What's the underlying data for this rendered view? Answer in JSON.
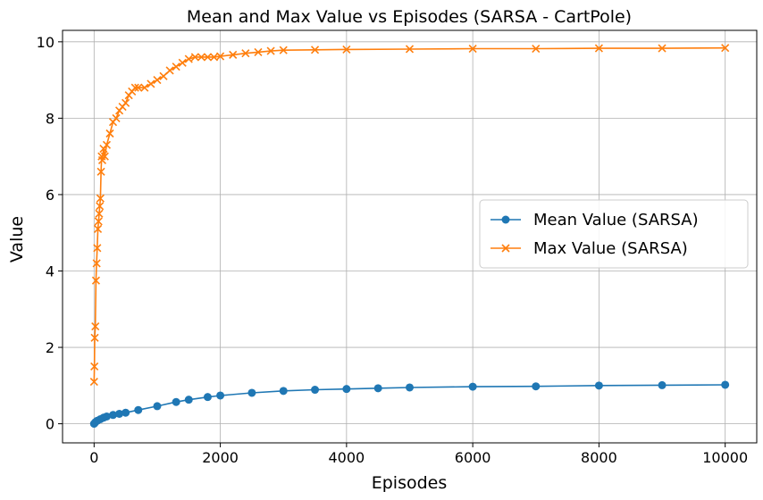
{
  "chart_data": {
    "type": "line",
    "title": "Mean and Max Value vs Episodes (SARSA - CartPole)",
    "xlabel": "Episodes",
    "ylabel": "Value",
    "xlim": [
      -500,
      10500
    ],
    "ylim": [
      -0.5,
      10.3
    ],
    "xticks": [
      0,
      2000,
      4000,
      6000,
      8000,
      10000
    ],
    "yticks": [
      0,
      2,
      4,
      6,
      8,
      10
    ],
    "grid": true,
    "legend_position": "center-right",
    "series": [
      {
        "name": "Mean Value (SARSA)",
        "color": "#1f77b4",
        "marker": "circle",
        "x": [
          0,
          20,
          50,
          100,
          150,
          200,
          300,
          400,
          500,
          700,
          1000,
          1300,
          1500,
          1800,
          2000,
          2500,
          3000,
          3500,
          4000,
          4500,
          5000,
          6000,
          7000,
          8000,
          9000,
          10000
        ],
        "y": [
          0.0,
          0.04,
          0.08,
          0.12,
          0.16,
          0.19,
          0.23,
          0.26,
          0.29,
          0.36,
          0.46,
          0.57,
          0.63,
          0.7,
          0.74,
          0.81,
          0.86,
          0.89,
          0.91,
          0.93,
          0.95,
          0.97,
          0.98,
          1.0,
          1.01,
          1.02
        ]
      },
      {
        "name": "Max Value (SARSA)",
        "color": "#ff7f0e",
        "marker": "x",
        "x": [
          0,
          5,
          10,
          20,
          30,
          40,
          50,
          60,
          70,
          80,
          90,
          100,
          110,
          120,
          130,
          150,
          170,
          200,
          250,
          300,
          350,
          400,
          450,
          500,
          550,
          600,
          650,
          700,
          800,
          900,
          1000,
          1100,
          1200,
          1300,
          1400,
          1500,
          1600,
          1700,
          1800,
          1900,
          2000,
          2200,
          2400,
          2600,
          2800,
          3000,
          3500,
          4000,
          5000,
          6000,
          7000,
          8000,
          9000,
          10000
        ],
        "y": [
          1.1,
          1.5,
          2.25,
          2.55,
          3.75,
          4.2,
          4.6,
          5.1,
          5.3,
          5.5,
          5.7,
          5.9,
          6.6,
          7.0,
          6.9,
          7.2,
          7.0,
          7.3,
          7.6,
          7.9,
          8.0,
          8.2,
          8.3,
          8.4,
          8.6,
          8.7,
          8.8,
          8.8,
          8.8,
          8.9,
          9.0,
          9.1,
          9.25,
          9.35,
          9.45,
          9.55,
          9.6,
          9.6,
          9.6,
          9.6,
          9.62,
          9.66,
          9.7,
          9.73,
          9.76,
          9.78,
          9.79,
          9.8,
          9.81,
          9.82,
          9.82,
          9.83,
          9.83,
          9.84
        ]
      }
    ]
  }
}
